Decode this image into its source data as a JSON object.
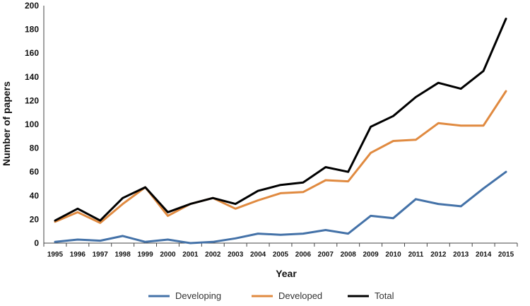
{
  "chart_data": {
    "type": "line",
    "title": "",
    "xlabel": "Year",
    "ylabel": "Number of papers",
    "ylim": [
      0,
      200
    ],
    "yticks": [
      0,
      20,
      40,
      60,
      80,
      100,
      120,
      140,
      160,
      180,
      200
    ],
    "grid": false,
    "legend_position": "bottom",
    "categories": [
      "1995",
      "1996",
      "1997",
      "1998",
      "1999",
      "2000",
      "2001",
      "2002",
      "2003",
      "2004",
      "2005",
      "2006",
      "2007",
      "2008",
      "2009",
      "2010",
      "2011",
      "2012",
      "2013",
      "2014",
      "2015"
    ],
    "series": [
      {
        "name": "Developing",
        "color": "#4472a8",
        "values": [
          1,
          3,
          2,
          6,
          1,
          3,
          0,
          1,
          4,
          8,
          7,
          8,
          11,
          8,
          23,
          21,
          37,
          33,
          31,
          46,
          60
        ]
      },
      {
        "name": "Developed",
        "color": "#e08a40",
        "values": [
          18,
          26,
          17,
          33,
          47,
          23,
          33,
          38,
          29,
          36,
          42,
          43,
          53,
          52,
          76,
          86,
          87,
          101,
          99,
          99,
          128
        ]
      },
      {
        "name": "Total",
        "color": "#000000",
        "values": [
          19,
          29,
          19,
          38,
          47,
          26,
          33,
          38,
          33,
          44,
          49,
          51,
          64,
          60,
          98,
          107,
          123,
          135,
          130,
          145,
          189
        ]
      }
    ]
  }
}
